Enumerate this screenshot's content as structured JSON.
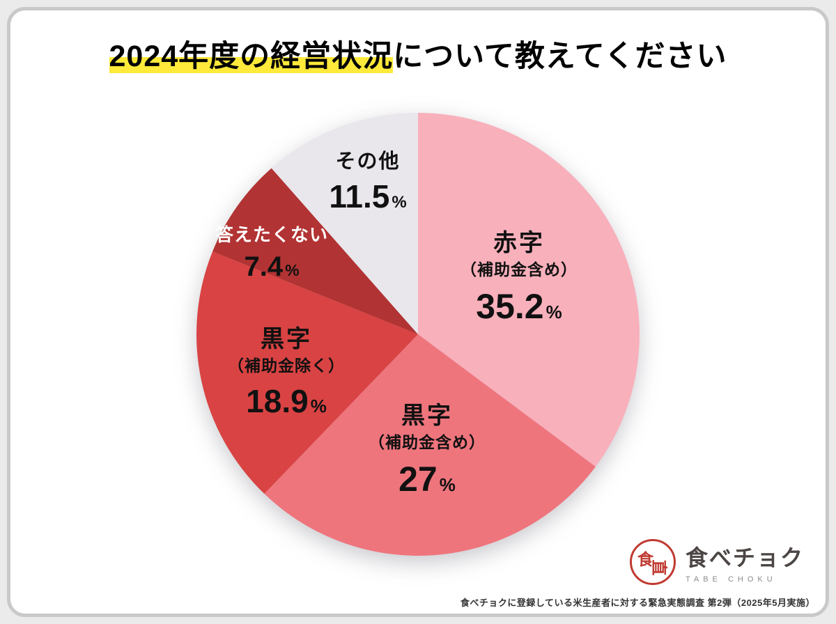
{
  "page": {
    "title_highlight": "2024年度の経営状況",
    "title_rest": "について教えてください",
    "highlight_color": "#ffe93a"
  },
  "chart_data": {
    "type": "pie",
    "title": "2024年度の経営状況について教えてください",
    "start_angle_deg": -90,
    "direction": "clockwise",
    "unit": "%",
    "slices": [
      {
        "label": "赤字",
        "sublabel": "（補助金含め）",
        "value": 35.2,
        "value_text": "35.2",
        "unit": "%",
        "color": "#f8b0bb",
        "text_color": "#111111"
      },
      {
        "label": "黒字",
        "sublabel": "（補助金含め）",
        "value": 27,
        "value_text": "27",
        "unit": "%",
        "color": "#ef757d",
        "text_color": "#111111"
      },
      {
        "label": "黒字",
        "sublabel": "（補助金除く）",
        "value": 18.9,
        "value_text": "18.9",
        "unit": "%",
        "color": "#d94343",
        "text_color": "#111111"
      },
      {
        "label": "答えたくない",
        "sublabel": "",
        "value": 7.4,
        "value_text": "7.4",
        "unit": "%",
        "color": "#b23333",
        "text_color": "#ffffff"
      },
      {
        "label": "その他",
        "sublabel": "",
        "value": 11.5,
        "value_text": "11.5",
        "unit": "%",
        "color": "#e9e7ec",
        "text_color": "#111111"
      }
    ]
  },
  "footer": {
    "logo_text": "食べチョク",
    "logo_subtext": "TABE CHOKU",
    "logo_emblem_char1": "食",
    "logo_emblem_char2": "直",
    "source": "食べチョクに登録している米生産者に対する緊急実態調査 第2弾（2025年5月実施）"
  }
}
